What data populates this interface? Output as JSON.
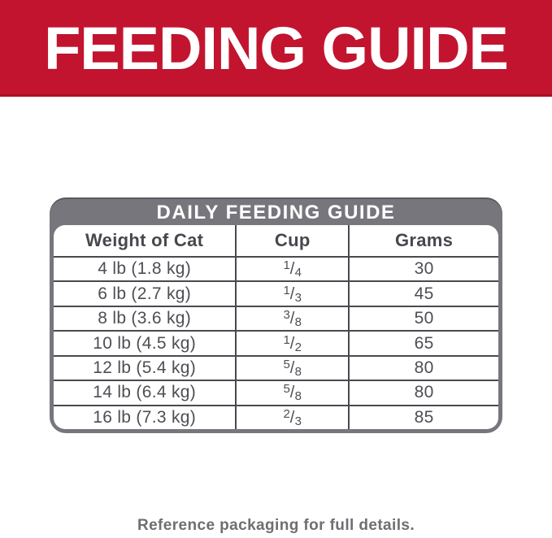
{
  "banner": {
    "title": "FEEDING GUIDE"
  },
  "card": {
    "title": "DAILY FEEDING GUIDE",
    "columns": [
      "Weight of Cat",
      "Cup",
      "Grams"
    ],
    "frac_slash": "/",
    "rows": [
      {
        "weight": "4 lb (1.8 kg)",
        "cup_num": "1",
        "cup_den": "4",
        "grams": "30"
      },
      {
        "weight": "6 lb (2.7 kg)",
        "cup_num": "1",
        "cup_den": "3",
        "grams": "45"
      },
      {
        "weight": "8 lb (3.6 kg)",
        "cup_num": "3",
        "cup_den": "8",
        "grams": "50"
      },
      {
        "weight": "10 lb (4.5 kg)",
        "cup_num": "1",
        "cup_den": "2",
        "grams": "65"
      },
      {
        "weight": "12 lb (5.4 kg)",
        "cup_num": "5",
        "cup_den": "8",
        "grams": "80"
      },
      {
        "weight": "14 lb (6.4 kg)",
        "cup_num": "5",
        "cup_den": "8",
        "grams": "80"
      },
      {
        "weight": "16 lb (7.3 kg)",
        "cup_num": "2",
        "cup_den": "3",
        "grams": "85"
      }
    ]
  },
  "footer": {
    "note": "Reference packaging for full details."
  },
  "colors": {
    "banner_red": "#c3142f",
    "frame_gray": "#77767d",
    "grid_line": "#4a494f",
    "cell_text": "#4e4e53",
    "footer_gray": "#6e6f72",
    "title_text": "#ffffff"
  },
  "chart_data": {
    "type": "table",
    "title": "DAILY FEEDING GUIDE",
    "columns": [
      "Weight of Cat",
      "Cup",
      "Grams"
    ],
    "rows": [
      [
        "4 lb (1.8 kg)",
        "1/4",
        "30"
      ],
      [
        "6 lb (2.7 kg)",
        "1/3",
        "45"
      ],
      [
        "8 lb (3.6 kg)",
        "3/8",
        "50"
      ],
      [
        "10 lb (4.5 kg)",
        "1/2",
        "65"
      ],
      [
        "12 lb (5.4 kg)",
        "5/8",
        "80"
      ],
      [
        "14 lb (6.4 kg)",
        "5/8",
        "80"
      ],
      [
        "16 lb (7.3 kg)",
        "2/3",
        "85"
      ]
    ]
  }
}
